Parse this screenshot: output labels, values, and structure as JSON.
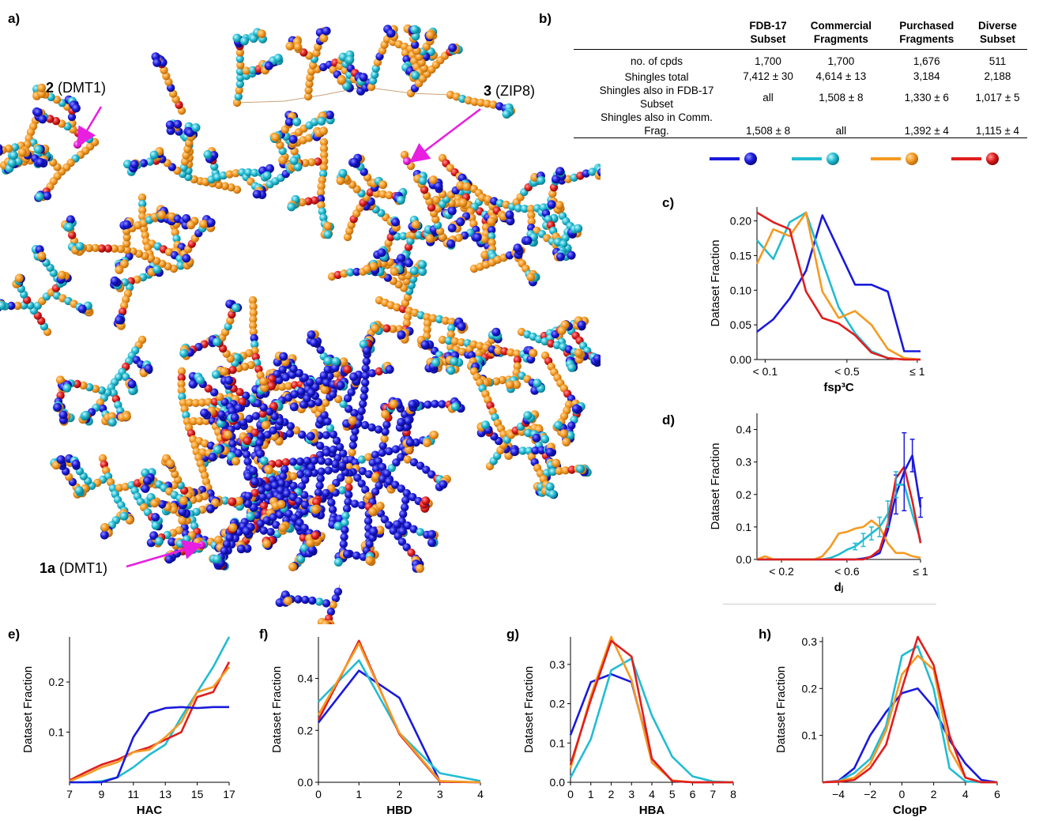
{
  "panel_letters": {
    "a": "a)",
    "b": "b)",
    "c": "c)",
    "d": "d)",
    "e": "e)",
    "f": "f)",
    "g": "g)",
    "h": "h)"
  },
  "tree_labels": {
    "l2": {
      "num": "2",
      "text": " (DMT1)"
    },
    "l3": {
      "num": "3",
      "text": " (ZIP8)"
    },
    "l1a": {
      "num": "1a",
      "text": "  (DMT1)"
    }
  },
  "colors": {
    "fdb": "#1a1adc",
    "comm": "#22bcd2",
    "purch": "#f59a22",
    "diverse": "#e01e1e",
    "arrow": "#e81ee0",
    "edge": "#c8a27a"
  },
  "table": {
    "columns": [
      "FDB-17 Subset",
      "Commercial Fragments",
      "Purchased Fragments",
      "Diverse Subset"
    ],
    "rows": [
      {
        "label": "no. of cpds",
        "values": [
          "1,700",
          "1,700",
          "1,676",
          "511"
        ]
      },
      {
        "label": "Shingles total",
        "values": [
          "7,412 ± 30",
          "4,614 ± 13",
          "3,184",
          "2,188"
        ]
      },
      {
        "label": "Shingles also in FDB-17 Subset",
        "values": [
          "all",
          "1,508 ± 8",
          "1,330 ± 6",
          "1,017 ± 5"
        ]
      },
      {
        "label": "Shingles also in Comm. Frag.",
        "values": [
          "1,508 ± 8",
          "all",
          "1,392 ± 4",
          "1,115 ± 4"
        ]
      }
    ]
  },
  "chart_data": [
    {
      "panel": "c",
      "type": "line",
      "xlabel": "fsp³C",
      "ylabel": "Dataset Fraction",
      "xlim": [
        0,
        1
      ],
      "ylim": [
        0,
        0.22
      ],
      "x_ticks": [
        {
          "v": 0.05,
          "label": "< 0.1"
        },
        {
          "v": 0.55,
          "label": "< 0.5"
        },
        {
          "v": 0.98,
          "label": "≤ 1"
        }
      ],
      "y_ticks": [
        0.0,
        0.05,
        0.1,
        0.15,
        0.2
      ],
      "y_tick_labels": [
        "0.00",
        "0.05",
        "0.10",
        "0.15",
        "0.20"
      ],
      "x": [
        0.0,
        0.1,
        0.2,
        0.3,
        0.4,
        0.5,
        0.6,
        0.7,
        0.8,
        0.9,
        1.0
      ],
      "series": [
        {
          "key": "fdb",
          "values": [
            0.04,
            0.058,
            0.088,
            0.128,
            0.208,
            0.158,
            0.108,
            0.108,
            0.098,
            0.012,
            0.012
          ]
        },
        {
          "key": "comm",
          "values": [
            0.172,
            0.145,
            0.198,
            0.212,
            0.142,
            0.075,
            0.038,
            0.012,
            0.002,
            0.0,
            0.0
          ]
        },
        {
          "key": "purch",
          "values": [
            0.138,
            0.188,
            0.178,
            0.212,
            0.098,
            0.06,
            0.07,
            0.05,
            0.015,
            0.002,
            0.0
          ]
        },
        {
          "key": "diverse",
          "values": [
            0.212,
            0.198,
            0.188,
            0.098,
            0.06,
            0.052,
            0.035,
            0.01,
            0.002,
            0.0,
            0.0
          ]
        }
      ]
    },
    {
      "panel": "d",
      "type": "line",
      "xlabel": "dⱼ",
      "ylabel": "Dataset Fraction",
      "xlim": [
        0,
        1
      ],
      "ylim": [
        0,
        0.45
      ],
      "x_ticks": [
        {
          "v": 0.15,
          "label": "< 0.2"
        },
        {
          "v": 0.55,
          "label": "< 0.6"
        },
        {
          "v": 1.0,
          "label": "≤ 1"
        }
      ],
      "y_ticks": [
        0.0,
        0.1,
        0.2,
        0.3,
        0.4
      ],
      "y_tick_labels": [
        "0.0",
        "0.1",
        "0.2",
        "0.3",
        "0.4"
      ],
      "x": [
        0.0,
        0.05,
        0.1,
        0.15,
        0.2,
        0.25,
        0.3,
        0.35,
        0.4,
        0.45,
        0.5,
        0.55,
        0.6,
        0.65,
        0.7,
        0.75,
        0.8,
        0.85,
        0.9,
        0.95,
        1.0
      ],
      "series": [
        {
          "key": "fdb",
          "values": [
            0,
            0,
            0,
            0,
            0,
            0,
            0,
            0,
            0,
            0,
            0,
            0,
            0,
            0.003,
            0.008,
            0.02,
            0.09,
            0.2,
            0.27,
            0.32,
            0.16
          ]
        },
        {
          "key": "comm",
          "values": [
            0,
            0,
            0,
            0,
            0,
            0,
            0,
            0,
            0,
            0.005,
            0.015,
            0.03,
            0.04,
            0.06,
            0.08,
            0.1,
            0.14,
            0.23,
            0.23,
            0.14,
            0.06
          ]
        },
        {
          "key": "purch",
          "values": [
            0,
            0.01,
            0,
            0,
            0,
            0,
            0,
            0,
            0.01,
            0.04,
            0.08,
            0.085,
            0.095,
            0.1,
            0.12,
            0.1,
            0.05,
            0.02,
            0.02,
            0.01,
            0.005
          ]
        },
        {
          "key": "diverse",
          "values": [
            0,
            0,
            0,
            0,
            0,
            0,
            0,
            0,
            0,
            0,
            0,
            0,
            0,
            0,
            0.01,
            0.03,
            0.11,
            0.25,
            0.285,
            0.18,
            0.05
          ]
        }
      ]
    },
    {
      "panel": "e",
      "type": "line",
      "xlabel": "HAC",
      "ylabel": "Dataset Fraction",
      "xlim": [
        7,
        17
      ],
      "ylim": [
        0,
        0.29
      ],
      "x_ticks": [
        {
          "v": 7,
          "label": "7"
        },
        {
          "v": 9,
          "label": "9"
        },
        {
          "v": 11,
          "label": "11"
        },
        {
          "v": 13,
          "label": "13"
        },
        {
          "v": 15,
          "label": "15"
        },
        {
          "v": 17,
          "label": "17"
        }
      ],
      "y_ticks": [
        0.1,
        0.2
      ],
      "y_tick_labels": [
        "0.1",
        "0.2"
      ],
      "x": [
        7,
        8,
        9,
        10,
        11,
        12,
        13,
        14,
        15,
        16,
        17
      ],
      "series": [
        {
          "key": "comm",
          "values": [
            0.0,
            0.0,
            0.002,
            0.01,
            0.03,
            0.055,
            0.075,
            0.13,
            0.18,
            0.23,
            0.29
          ]
        },
        {
          "key": "diverse",
          "values": [
            0.004,
            0.02,
            0.035,
            0.045,
            0.06,
            0.07,
            0.085,
            0.1,
            0.17,
            0.18,
            0.24
          ]
        },
        {
          "key": "purch",
          "values": [
            0.002,
            0.015,
            0.03,
            0.04,
            0.06,
            0.065,
            0.09,
            0.12,
            0.18,
            0.19,
            0.23
          ]
        },
        {
          "key": "fdb",
          "values": [
            0,
            0,
            0,
            0.01,
            0.09,
            0.138,
            0.148,
            0.15,
            0.148,
            0.15,
            0.15
          ]
        }
      ]
    },
    {
      "panel": "f",
      "type": "line",
      "xlabel": "HBD",
      "ylabel": "Dataset Fraction",
      "xlim": [
        0,
        4
      ],
      "ylim": [
        0,
        0.56
      ],
      "x_ticks": [
        {
          "v": 0,
          "label": "0"
        },
        {
          "v": 1,
          "label": "1"
        },
        {
          "v": 2,
          "label": "2"
        },
        {
          "v": 3,
          "label": "3"
        },
        {
          "v": 4,
          "label": "4"
        }
      ],
      "y_ticks": [
        0.0,
        0.2,
        0.4
      ],
      "y_tick_labels": [
        "0.0",
        "0.2",
        "0.4"
      ],
      "x": [
        0,
        1,
        2,
        3,
        4
      ],
      "series": [
        {
          "key": "fdb",
          "values": [
            0.23,
            0.43,
            0.325,
            0.002,
            0.0
          ]
        },
        {
          "key": "comm",
          "values": [
            0.31,
            0.47,
            0.19,
            0.035,
            0.005
          ]
        },
        {
          "key": "diverse",
          "values": [
            0.24,
            0.545,
            0.185,
            0.002,
            0.0
          ]
        },
        {
          "key": "purch",
          "values": [
            0.26,
            0.535,
            0.19,
            0.005,
            0.0
          ]
        }
      ]
    },
    {
      "panel": "g",
      "type": "line",
      "xlabel": "HBA",
      "ylabel": "Dataset Fraction",
      "xlim": [
        0,
        8
      ],
      "ylim": [
        0,
        0.37
      ],
      "x_ticks": [
        {
          "v": 0,
          "label": "0"
        },
        {
          "v": 1,
          "label": "1"
        },
        {
          "v": 2,
          "label": "2"
        },
        {
          "v": 3,
          "label": "3"
        },
        {
          "v": 4,
          "label": "4"
        },
        {
          "v": 5,
          "label": "5"
        },
        {
          "v": 6,
          "label": "6"
        },
        {
          "v": 7,
          "label": "7"
        },
        {
          "v": 8,
          "label": "8"
        }
      ],
      "y_ticks": [
        0.0,
        0.1,
        0.2,
        0.3
      ],
      "y_tick_labels": [
        "0.0",
        "0.1",
        "0.2",
        "0.3"
      ],
      "x": [
        0,
        1,
        2,
        3,
        4,
        5,
        6,
        7,
        8
      ],
      "series": [
        {
          "key": "fdb",
          "values": [
            0.12,
            0.255,
            0.275,
            0.255,
            0.06,
            0.003,
            0,
            0,
            0
          ]
        },
        {
          "key": "comm",
          "values": [
            0.012,
            0.11,
            0.285,
            0.315,
            0.17,
            0.065,
            0.015,
            0.002,
            0.0
          ]
        },
        {
          "key": "purch",
          "values": [
            0.035,
            0.22,
            0.37,
            0.26,
            0.05,
            0.005,
            0,
            0,
            0
          ]
        },
        {
          "key": "diverse",
          "values": [
            0.045,
            0.21,
            0.36,
            0.32,
            0.06,
            0.003,
            0,
            0,
            0
          ]
        }
      ]
    },
    {
      "panel": "h",
      "type": "line",
      "xlabel": "ClogP",
      "ylabel": "Dataset Fraction",
      "xlim": [
        -5,
        6
      ],
      "ylim": [
        0,
        0.31
      ],
      "x_ticks": [
        {
          "v": -4,
          "label": "−4"
        },
        {
          "v": -2,
          "label": "−2"
        },
        {
          "v": 0,
          "label": "0"
        },
        {
          "v": 2,
          "label": "2"
        },
        {
          "v": 4,
          "label": "4"
        },
        {
          "v": 6,
          "label": "6"
        }
      ],
      "y_ticks": [
        0.1,
        0.2,
        0.3
      ],
      "y_tick_labels": [
        "0.1",
        "0.2",
        "0.3"
      ],
      "x": [
        -5,
        -4,
        -3,
        -2,
        -1,
        0,
        1,
        2,
        3,
        4,
        5,
        6
      ],
      "series": [
        {
          "key": "fdb",
          "values": [
            0.0,
            0.003,
            0.03,
            0.1,
            0.15,
            0.19,
            0.2,
            0.16,
            0.09,
            0.04,
            0.005,
            0.0
          ]
        },
        {
          "key": "comm",
          "values": [
            0.0,
            0.002,
            0.02,
            0.05,
            0.12,
            0.27,
            0.29,
            0.2,
            0.03,
            0.002,
            0.0,
            0.0
          ]
        },
        {
          "key": "purch",
          "values": [
            0.0,
            0.002,
            0.01,
            0.04,
            0.11,
            0.23,
            0.27,
            0.24,
            0.07,
            0.01,
            0.0,
            0.0
          ]
        },
        {
          "key": "diverse",
          "values": [
            0.0,
            0.001,
            0.005,
            0.03,
            0.08,
            0.2,
            0.31,
            0.25,
            0.1,
            0.01,
            0.0,
            0.0
          ]
        }
      ]
    }
  ]
}
